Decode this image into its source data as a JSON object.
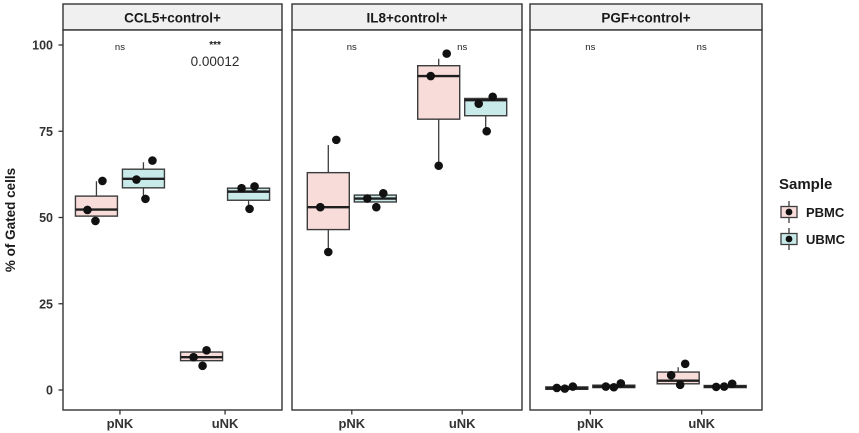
{
  "colors": {
    "pbmc_fill": "#f8dcd9",
    "ubmc_fill": "#c8ebea",
    "box_border": "#3c3c3c",
    "median_line": "#1f1f1f",
    "whisker": "#3c3c3c",
    "point": "#111111",
    "strip_bg": "#f0f0f0",
    "panel_border": "#333333",
    "text": "#333333",
    "title_text": "#1a1a1a"
  },
  "chart_data": {
    "type": "boxplot",
    "facet_layout": "3 panels side-by-side, shared y axis",
    "ylabel": "% of Gated cells",
    "ylim": [
      0,
      100
    ],
    "yticks": [
      0,
      25,
      50,
      75,
      100
    ],
    "groups": [
      "pNK",
      "uNK"
    ],
    "samples": [
      "PBMC",
      "UBMC"
    ],
    "grid": false,
    "legend": {
      "title": "Sample",
      "position": "right",
      "items": [
        {
          "label": "PBMC",
          "fill": "#f8dcd9"
        },
        {
          "label": "UBMC",
          "fill": "#c8ebea"
        }
      ]
    },
    "facets": [
      {
        "title": "CCL5+control+",
        "annotations": [
          {
            "group": "pNK",
            "label": "ns"
          },
          {
            "group": "uNK",
            "label": "***",
            "p_value": "0.00012"
          }
        ],
        "boxes": [
          {
            "group": "pNK",
            "sample": "PBMC",
            "q1": 50.4,
            "median": 52.3,
            "q3": 56.2,
            "whisker_low": 50.4,
            "whisker_high": 60.5,
            "points": [
              {
                "v": 60.6,
                "dx": 6
              },
              {
                "v": 52.2,
                "dx": -9
              },
              {
                "v": 49.0,
                "dx": -1
              }
            ]
          },
          {
            "group": "pNK",
            "sample": "UBMC",
            "q1": 58.6,
            "median": 61.2,
            "q3": 64.0,
            "whisker_low": 56.2,
            "whisker_high": 66.0,
            "points": [
              {
                "v": 66.5,
                "dx": 9
              },
              {
                "v": 61.0,
                "dx": -7
              },
              {
                "v": 55.4,
                "dx": 2
              }
            ]
          },
          {
            "group": "uNK",
            "sample": "PBMC",
            "q1": 8.5,
            "median": 9.5,
            "q3": 11.0,
            "whisker_low": 8.5,
            "whisker_high": 11.0,
            "points": [
              {
                "v": 11.5,
                "dx": 5
              },
              {
                "v": 9.5,
                "dx": -8
              },
              {
                "v": 7.0,
                "dx": 1
              }
            ]
          },
          {
            "group": "uNK",
            "sample": "UBMC",
            "q1": 55.0,
            "median": 57.5,
            "q3": 58.5,
            "whisker_low": 53.0,
            "whisker_high": 58.5,
            "points": [
              {
                "v": 59.0,
                "dx": 6
              },
              {
                "v": 58.5,
                "dx": -7
              },
              {
                "v": 52.5,
                "dx": 1
              }
            ]
          }
        ]
      },
      {
        "title": "IL8+control+",
        "annotations": [
          {
            "group": "pNK",
            "label": "ns"
          },
          {
            "group": "uNK",
            "label": "ns"
          }
        ],
        "boxes": [
          {
            "group": "pNK",
            "sample": "PBMC",
            "q1": 46.5,
            "median": 53.0,
            "q3": 63.0,
            "whisker_low": 40.5,
            "whisker_high": 71.0,
            "points": [
              {
                "v": 72.5,
                "dx": 8
              },
              {
                "v": 53.0,
                "dx": -8
              },
              {
                "v": 40.0,
                "dx": 0
              }
            ]
          },
          {
            "group": "pNK",
            "sample": "UBMC",
            "q1": 54.5,
            "median": 55.5,
            "q3": 56.5,
            "whisker_low": 54.5,
            "whisker_high": 56.5,
            "points": [
              {
                "v": 57.0,
                "dx": 8
              },
              {
                "v": 55.5,
                "dx": -8
              },
              {
                "v": 53.0,
                "dx": 1
              }
            ]
          },
          {
            "group": "uNK",
            "sample": "PBMC",
            "q1": 78.5,
            "median": 91.0,
            "q3": 94.0,
            "whisker_low": 65.0,
            "whisker_high": 96.0,
            "points": [
              {
                "v": 97.5,
                "dx": 8
              },
              {
                "v": 91.0,
                "dx": -8
              },
              {
                "v": 65.0,
                "dx": 0
              }
            ]
          },
          {
            "group": "uNK",
            "sample": "UBMC",
            "q1": 79.5,
            "median": 84.0,
            "q3": 84.5,
            "whisker_low": 75.0,
            "whisker_high": 84.5,
            "points": [
              {
                "v": 85.0,
                "dx": 7
              },
              {
                "v": 83.0,
                "dx": -7
              },
              {
                "v": 75.0,
                "dx": 1
              }
            ]
          }
        ]
      },
      {
        "title": "PGF+control+",
        "annotations": [
          {
            "group": "pNK",
            "label": "ns"
          },
          {
            "group": "uNK",
            "label": "ns"
          }
        ],
        "boxes": [
          {
            "group": "pNK",
            "sample": "PBMC",
            "q1": 0.2,
            "median": 0.5,
            "q3": 0.9,
            "whisker_low": 0.2,
            "whisker_high": 0.9,
            "points": [
              {
                "v": 1.0,
                "dx": 6
              },
              {
                "v": 0.6,
                "dx": -10
              },
              {
                "v": 0.4,
                "dx": -2
              }
            ]
          },
          {
            "group": "pNK",
            "sample": "UBMC",
            "q1": 0.7,
            "median": 1.0,
            "q3": 1.4,
            "whisker_low": 0.7,
            "whisker_high": 1.4,
            "points": [
              {
                "v": 1.9,
                "dx": 7
              },
              {
                "v": 1.0,
                "dx": -8
              },
              {
                "v": 0.8,
                "dx": 0
              }
            ]
          },
          {
            "group": "uNK",
            "sample": "PBMC",
            "q1": 1.8,
            "median": 2.7,
            "q3": 5.2,
            "whisker_low": 1.8,
            "whisker_high": 6.6,
            "points": [
              {
                "v": 7.6,
                "dx": 7
              },
              {
                "v": 4.3,
                "dx": -7
              },
              {
                "v": 1.5,
                "dx": 2
              }
            ]
          },
          {
            "group": "uNK",
            "sample": "UBMC",
            "q1": 0.7,
            "median": 1.0,
            "q3": 1.3,
            "whisker_low": 0.7,
            "whisker_high": 1.3,
            "points": [
              {
                "v": 1.8,
                "dx": 7
              },
              {
                "v": 0.9,
                "dx": -9
              },
              {
                "v": 1.0,
                "dx": -1
              }
            ]
          }
        ]
      }
    ]
  }
}
